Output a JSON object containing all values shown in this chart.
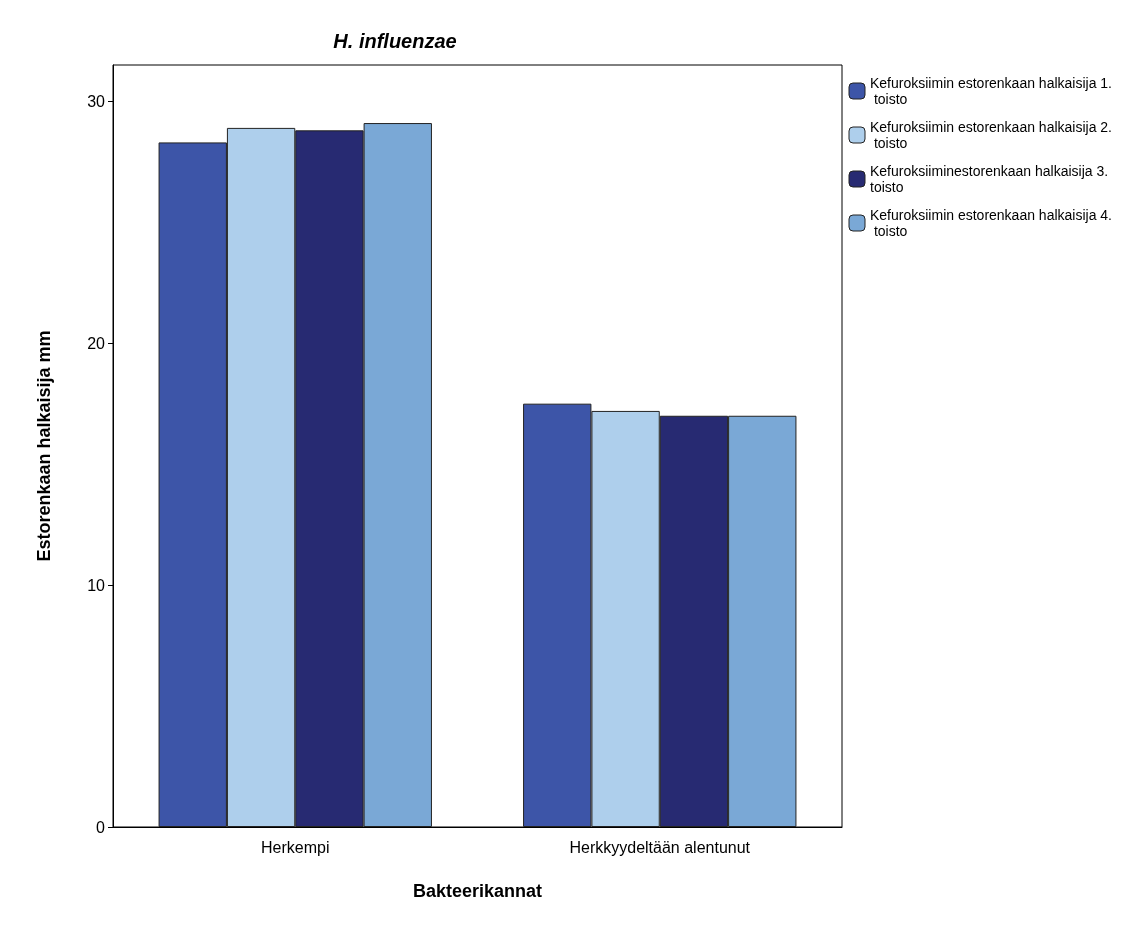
{
  "chart_data": {
    "type": "bar",
    "title": "H. influenzae",
    "xlabel": "Bakteerikannat",
    "ylabel": "Estorenkaan halkaisija mm",
    "categories": [
      "Herkempi",
      "Herkkyydeltään alentunut"
    ],
    "series": [
      {
        "name": "Kefuroksiimin estorenkaan halkaisija 1. toisto",
        "color": "#3d55a8",
        "values": [
          28.3,
          17.5
        ]
      },
      {
        "name": "Kefuroksiimin estorenkaan halkaisija 2. toisto",
        "color": "#aecfec",
        "values": [
          28.9,
          17.2
        ]
      },
      {
        "name": "Kefuroksiiminestorenkaan halkaisija 3. toisto",
        "color": "#272a72",
        "values": [
          28.8,
          17.0
        ]
      },
      {
        "name": "Kefuroksiimin estorenkaan halkaisija 4. toisto",
        "color": "#7aa8d6",
        "values": [
          29.1,
          17.0
        ]
      }
    ],
    "ylim": [
      0,
      31.5
    ],
    "yticks": [
      0,
      10,
      20,
      30
    ],
    "grid": false,
    "legend": "top right"
  }
}
